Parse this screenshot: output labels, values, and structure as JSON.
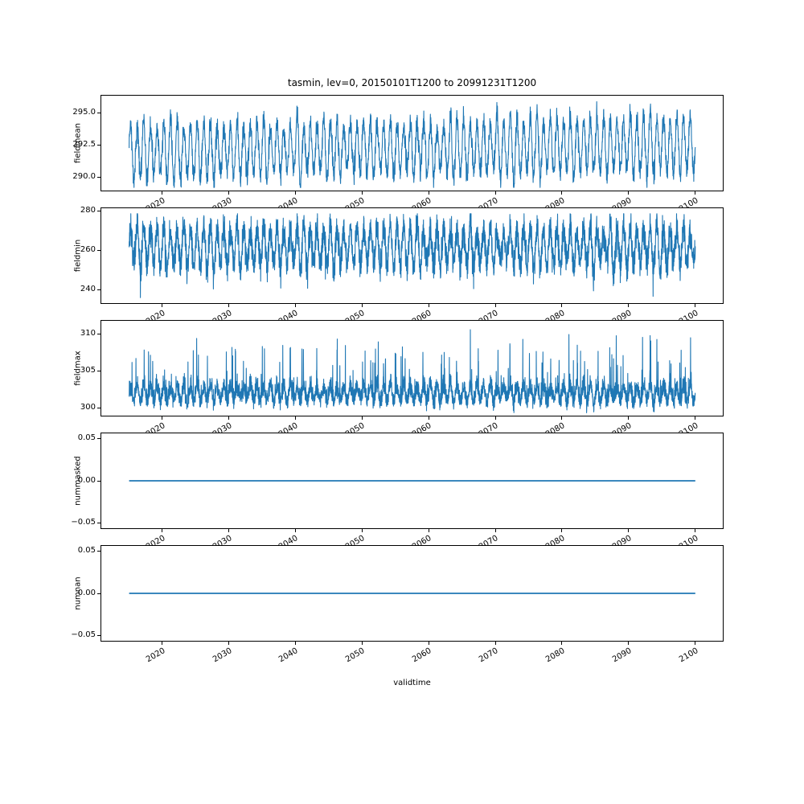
{
  "figure": {
    "title": "tasmin, lev=0, 20150101T1200 to 20991231T1200",
    "xlabel": "validtime",
    "background": "#ffffff",
    "line_color": "#1f77b4"
  },
  "axis_x": {
    "label": "validtime",
    "data_range": [
      2015.04,
      2100.0
    ],
    "axis_range": [
      2010.75,
      2104.25
    ],
    "ticks": [
      2020,
      2030,
      2040,
      2050,
      2060,
      2070,
      2080,
      2090,
      2100
    ],
    "tick_labels": [
      "2020",
      "2030",
      "2040",
      "2050",
      "2060",
      "2070",
      "2080",
      "2090",
      "2100"
    ],
    "tick_rotation_deg": 30
  },
  "chart_data": [
    {
      "type": "line",
      "ylabel": "fieldmean",
      "ylim": [
        288.9,
        296.4
      ],
      "yticks": [
        {
          "v": 295.0,
          "label": "295.0"
        },
        {
          "v": 292.5,
          "label": "292.5"
        },
        {
          "v": 290.0,
          "label": "290.0"
        }
      ],
      "series": [
        {
          "name": "fieldmean",
          "color": "#1f77b4",
          "kind": "seasonal",
          "seed": 42,
          "n": 3000,
          "base": 292.0,
          "trend": 0.006,
          "amp": 2.05,
          "amp_jitter": 0.3,
          "noise": 0.45,
          "clip": [
            289.2,
            296.2
          ],
          "summary": "annual oscillation ~292 K, envelope 289.5-295.5 K, slight rise to ~296 K near 2099"
        }
      ]
    },
    {
      "type": "line",
      "ylabel": "fieldmin",
      "ylim": [
        233.0,
        282.0
      ],
      "yticks": [
        {
          "v": 280,
          "label": "280"
        },
        {
          "v": 260,
          "label": "260"
        },
        {
          "v": 240,
          "label": "240"
        }
      ],
      "series": [
        {
          "name": "fieldmin",
          "color": "#1f77b4",
          "kind": "seasonal",
          "seed": 7,
          "n": 4200,
          "base": 262.0,
          "trend": 0.0,
          "amp": 9.5,
          "amp_jitter": 1.5,
          "noise": 3.8,
          "dip_prob": 0.0015,
          "dip_depth": 14,
          "clip": [
            236.2,
            278.8
          ],
          "summary": "noisy band ~248-278 K with occasional deep dips to ~236 K (deepest near 2061)"
        }
      ]
    },
    {
      "type": "line",
      "ylabel": "fieldmax",
      "ylim": [
        298.8,
        311.9
      ],
      "yticks": [
        {
          "v": 310,
          "label": "310"
        },
        {
          "v": 305,
          "label": "305"
        },
        {
          "v": 300,
          "label": "300"
        }
      ],
      "series": [
        {
          "name": "fieldmax",
          "color": "#1f77b4",
          "kind": "seasonal",
          "seed": 13,
          "n": 4200,
          "base": 301.2,
          "trend": 0.0,
          "amp": 1.0,
          "amp_jitter": 0.2,
          "noise": 0.35,
          "noise_abs": 0.9,
          "spike_prob": 0.03,
          "spike_max": 6.5,
          "clip": [
            299.3,
            311.2
          ],
          "summary": "baseline band ~300-304 K with frequent upward spikes to 307-311 K"
        }
      ]
    },
    {
      "type": "line",
      "ylabel": "nummasked",
      "ylim": [
        -0.0575,
        0.0575
      ],
      "yticks": [
        {
          "v": 0.05,
          "label": "0.05"
        },
        {
          "v": 0.0,
          "label": "0.00"
        },
        {
          "v": -0.05,
          "label": "−0.05"
        }
      ],
      "series": [
        {
          "name": "nummasked",
          "color": "#1f77b4",
          "kind": "constant",
          "value": 0,
          "summary": "constant 0 for entire period"
        }
      ]
    },
    {
      "type": "line",
      "ylabel": "numnan",
      "ylim": [
        -0.0575,
        0.0575
      ],
      "yticks": [
        {
          "v": 0.05,
          "label": "0.05"
        },
        {
          "v": 0.0,
          "label": "0.00"
        },
        {
          "v": -0.05,
          "label": "−0.05"
        }
      ],
      "series": [
        {
          "name": "numnan",
          "color": "#1f77b4",
          "kind": "constant",
          "value": 0,
          "summary": "constant 0 for entire period"
        }
      ]
    }
  ]
}
